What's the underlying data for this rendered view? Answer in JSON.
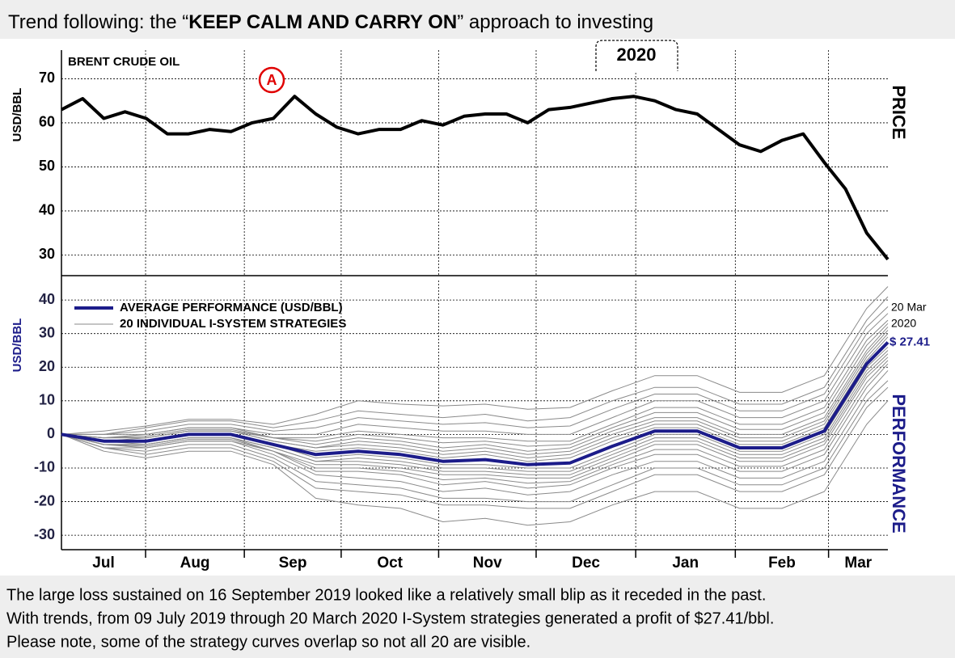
{
  "title": {
    "before": "Trend following: the “",
    "emphasis": "KEEP CALM AND CARRY ON",
    "after": "” approach to investing"
  },
  "chart_data": [
    {
      "type": "line",
      "ylabel": "USD/BBL",
      "panel_label": "PRICE",
      "event_marker": "A",
      "year_marker": "2020",
      "x": [
        0,
        1,
        2,
        3,
        4,
        5,
        6,
        7,
        8,
        9,
        10,
        11,
        12,
        13,
        14,
        15,
        16,
        17,
        18,
        19,
        20,
        21,
        22,
        23,
        24,
        25,
        26,
        27,
        28,
        29,
        30,
        31,
        32,
        33,
        34,
        35,
        36,
        37,
        38,
        39
      ],
      "xlim": [
        0,
        39
      ],
      "ylim": [
        25.5,
        76.5
      ],
      "yticks": [
        30,
        40,
        50,
        60,
        70
      ],
      "grid": true,
      "series": [
        {
          "name": "BRENT CRUDE OIL",
          "color": "#000000",
          "values": [
            63,
            65.5,
            61,
            62.5,
            61,
            57.5,
            57.5,
            58.5,
            58,
            60,
            61,
            66,
            62,
            59,
            57.5,
            58.5,
            58.5,
            60.5,
            59.5,
            61.5,
            62,
            62,
            60,
            63,
            63.5,
            64.5,
            65.5,
            66,
            65,
            63,
            62,
            58.5,
            55,
            53.5,
            56,
            57.5,
            51,
            45,
            35,
            29
          ]
        }
      ]
    },
    {
      "type": "line",
      "ylabel": "USD/BBL",
      "panel_label": "PERFORMANCE",
      "x": [
        0,
        2,
        4,
        6,
        8,
        10,
        12,
        14,
        16,
        18,
        20,
        22,
        24,
        26,
        28,
        30,
        32,
        34,
        36,
        38,
        39
      ],
      "xlim": [
        0,
        39
      ],
      "xticks": [
        {
          "value": 0,
          "label": "Jul"
        },
        {
          "value": 3.97,
          "label": "Aug"
        },
        {
          "value": 8.63,
          "label": "Sep"
        },
        {
          "value": 13.2,
          "label": "Oct"
        },
        {
          "value": 17.8,
          "label": "Nov"
        },
        {
          "value": 22.4,
          "label": "Dec"
        },
        {
          "value": 27.1,
          "label": "Jan"
        },
        {
          "value": 31.8,
          "label": "Feb"
        },
        {
          "value": 36.2,
          "label": "Mar"
        }
      ],
      "ylim": [
        -34.3,
        45.8
      ],
      "yticks": [
        -30,
        -20,
        -10,
        0,
        10,
        20,
        30,
        40
      ],
      "grid": true,
      "end_date": [
        "20 Mar",
        "2020"
      ],
      "series": [
        {
          "name": "AVERAGE PERFORMANCE (USD/BBL)",
          "color": "#1c1c8a",
          "values": [
            0,
            -2,
            -2,
            0,
            0,
            -3,
            -6,
            -5,
            -6,
            -8,
            -7.5,
            -9,
            -8.5,
            -3.5,
            1,
            1,
            -4,
            -4,
            1,
            21,
            27.41
          ],
          "value_labels": [
            null,
            null,
            null,
            null,
            null,
            null,
            null,
            null,
            null,
            null,
            null,
            null,
            null,
            null,
            null,
            null,
            null,
            null,
            null,
            null,
            "$ 27.41"
          ]
        }
      ],
      "strategies": {
        "name": "20 INDIVIDUAL I-SYSTEM STRATEGIES",
        "color": "#8a8a8a",
        "values": [
          [
            0,
            -5,
            -7,
            -5,
            -5,
            -9,
            -19,
            -21,
            -22,
            -26,
            -25,
            -27,
            -26,
            -21,
            -17,
            -17,
            -22,
            -22,
            -17,
            3,
            10
          ],
          [
            0,
            -4,
            -6,
            -4,
            -4,
            -8,
            -16,
            -17,
            -18,
            -21,
            -21,
            -22,
            -22,
            -17,
            -12,
            -12,
            -17,
            -17,
            -12,
            8,
            14
          ],
          [
            0,
            -4,
            -5,
            -3,
            -3,
            -7,
            -14,
            -15,
            -16,
            -19,
            -19,
            -20,
            -20,
            -15,
            -10,
            -10,
            -15,
            -15,
            -10,
            10,
            16
          ],
          [
            0,
            -4,
            -4,
            -2,
            -2,
            -6,
            -12,
            -13,
            -14,
            -17,
            -16,
            -18,
            -17,
            -12,
            -8,
            -8,
            -13,
            -13,
            -8,
            12,
            19
          ],
          [
            0,
            -3,
            -4,
            -2,
            -2,
            -5,
            -11,
            -11,
            -12,
            -15,
            -14,
            -16,
            -15,
            -10,
            -6,
            -6,
            -11,
            -11,
            -6,
            14,
            21
          ],
          [
            0,
            -3,
            -3.5,
            -1.5,
            -1.5,
            -5,
            -10,
            -10,
            -11,
            -13.5,
            -13,
            -14.5,
            -14,
            -9,
            -4.5,
            -4.5,
            -9.5,
            -9.5,
            -4.5,
            15.5,
            22
          ],
          [
            0,
            -3,
            -3,
            -1,
            -1,
            -5,
            -9,
            -9,
            -10,
            -12,
            -12,
            -13,
            -13,
            -8,
            -3,
            -3,
            -8,
            -8,
            -3,
            17,
            23
          ],
          [
            0,
            -3,
            -3,
            -1,
            -1,
            -4,
            -8,
            -8,
            -9,
            -11,
            -11,
            -12,
            -12,
            -7,
            -2,
            -2,
            -7,
            -7,
            -2,
            18,
            24
          ],
          [
            0,
            -2,
            -3,
            -1,
            -1,
            -4,
            -8,
            -7,
            -8,
            -10,
            -10,
            -11,
            -11,
            -6,
            -1,
            -1,
            -6,
            -6,
            -1,
            19,
            25
          ],
          [
            0,
            -2,
            -2,
            0,
            0,
            -3,
            -7,
            -6,
            -7,
            -9,
            -9,
            -10,
            -10,
            -5,
            0,
            0,
            -5,
            -5,
            0,
            20,
            26
          ],
          [
            0,
            -2,
            -2,
            0,
            0,
            -3,
            -5,
            -4,
            -5,
            -7,
            -6,
            -8,
            -7,
            -2,
            2,
            2,
            -3,
            -3,
            2,
            22,
            29
          ],
          [
            0,
            -2,
            -1,
            1,
            1,
            -2,
            -4,
            -3,
            -4,
            -6,
            -5,
            -7,
            -6,
            -1,
            3,
            3,
            -2,
            -2,
            3,
            23,
            30
          ],
          [
            0,
            -1,
            -1,
            1,
            1,
            -2,
            -4,
            -2,
            -3,
            -5,
            -4,
            -6,
            -5,
            0,
            4,
            4,
            -1,
            -1,
            4,
            24,
            31
          ],
          [
            0,
            -1,
            -1,
            1,
            1,
            -1,
            -3,
            -1,
            -2,
            -4,
            -3,
            -5,
            -4,
            1,
            5,
            5,
            0,
            0,
            5,
            25,
            32
          ],
          [
            0,
            -1,
            -0.5,
            1.5,
            1.5,
            -1,
            -2,
            0,
            -1,
            -2.5,
            -2,
            -3.5,
            -3,
            2,
            6.5,
            6.5,
            1.5,
            1.5,
            6.5,
            26.5,
            33
          ],
          [
            0,
            -1,
            0,
            2,
            2,
            -1,
            -1,
            1,
            0,
            -1,
            -1,
            -2,
            -2,
            3,
            8,
            8,
            3,
            3,
            8,
            28,
            34
          ],
          [
            0,
            0,
            0,
            2,
            2,
            0,
            0,
            3,
            2,
            1,
            1,
            0,
            0,
            5,
            10,
            10,
            5,
            5,
            10,
            30,
            36
          ],
          [
            0,
            0,
            1,
            3,
            3,
            1,
            2,
            5,
            4,
            3,
            3.5,
            2,
            2.5,
            7.5,
            12,
            12,
            7,
            7,
            12,
            32,
            38
          ],
          [
            0,
            0,
            2,
            4,
            4,
            2,
            4,
            7,
            6,
            5,
            6,
            4,
            5,
            10,
            14,
            14,
            9,
            9,
            14,
            34,
            41
          ],
          [
            0,
            1,
            2.5,
            4.5,
            4.5,
            3,
            6,
            10,
            9,
            8.5,
            9,
            7.5,
            8,
            13,
            17.5,
            17.5,
            12.5,
            12.5,
            17.5,
            37.5,
            44
          ]
        ]
      }
    }
  ],
  "footer": [
    "The large loss sustained on 16 September 2019 looked like a relatively small blip as it receded in the past.",
    "With trends, from 09 July 2019 through 20 March 2020 I-System strategies generated a profit of $27.41/bbl.",
    "Please note, some of the strategy curves overlap so not all 20 are visible."
  ]
}
